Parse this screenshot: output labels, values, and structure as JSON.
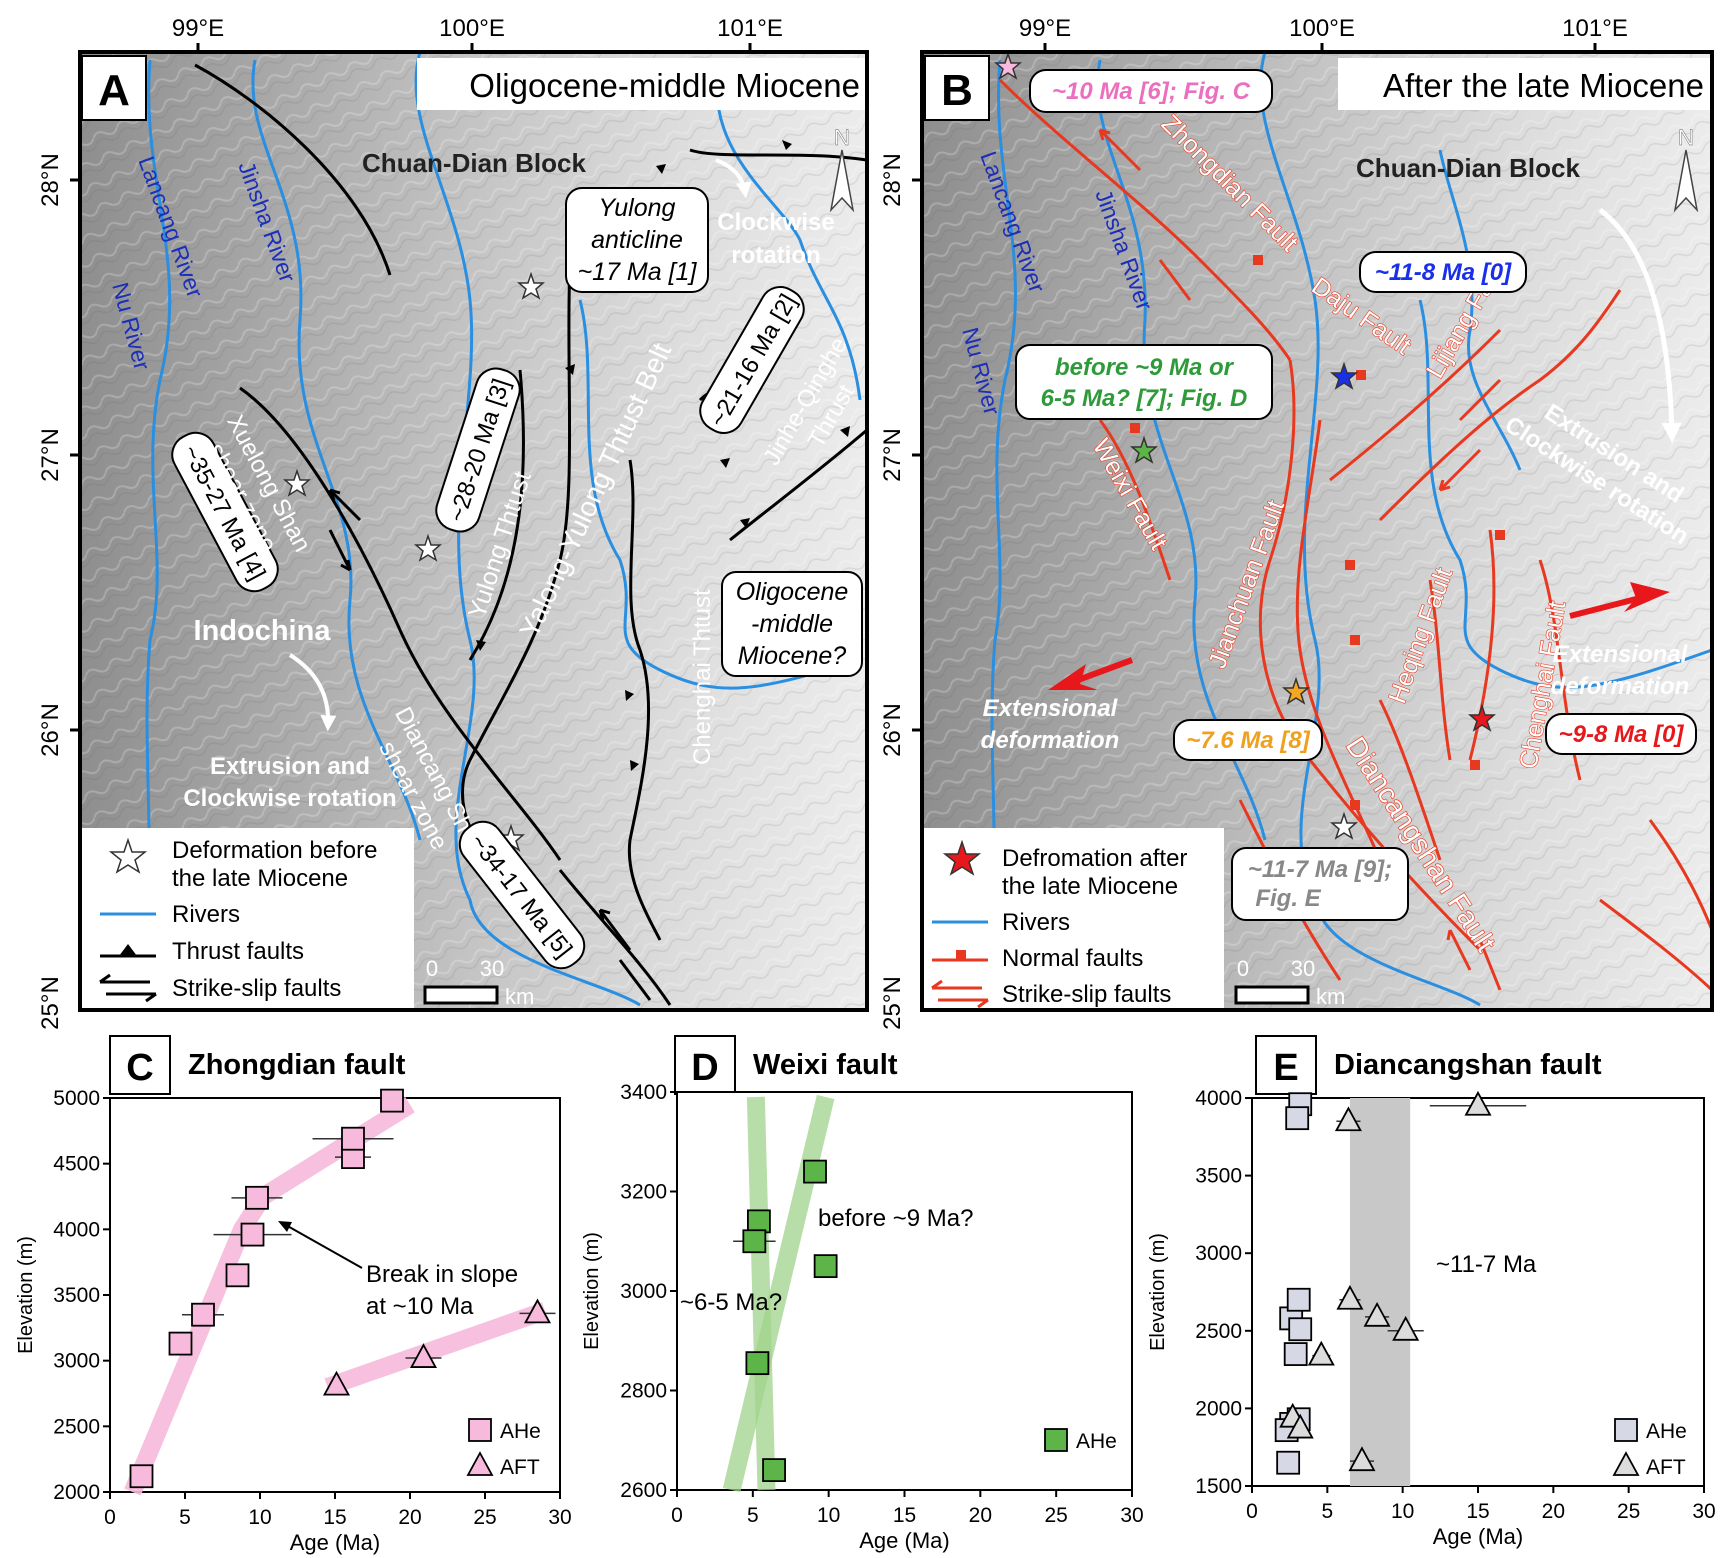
{
  "panel_a": {
    "letter": "A",
    "title": "Oligocene-middle Miocene",
    "lon_labels": [
      "99°E",
      "100°E",
      "101°E"
    ],
    "lat_labels": [
      "28°N",
      "27°N",
      "26°N",
      "25°N"
    ],
    "block_label": "Chuan-Dian Block",
    "rivers": [
      "Lancang River",
      "Jinsha River",
      "Nu River"
    ],
    "region_indochina": "Indochina",
    "extrusion_line1": "Extrusion and",
    "extrusion_line2": "Clockwise rotation",
    "clockwise_line1": "Clockwise",
    "clockwise_line2": "rotation",
    "yulong_box": [
      "Yulong",
      "anticline",
      "~17 Ma [1]"
    ],
    "age_2": "~21-16 Ma [2]",
    "age_3": "~28-20 Ma [3]",
    "age_4": "~35-27 Ma [4]",
    "age_5": "~34-17 Ma [5]",
    "xuelong_line1": "Xuelong Shan",
    "xuelong_line2": "shear zone",
    "diancang_line1": "Diancang Shan",
    "diancang_line2": "shear zone",
    "yulong_thrust": "Yulong Thtust",
    "yalong_belt": "Yalong-Yulong Thtust Belt",
    "jinhe_line1": "Jinhe-Qinghe",
    "jinhe_line2": "Thrust",
    "chenghai_thrust": "Chenghai Thtust",
    "oligo_box": [
      "Oligocene",
      "-middle",
      "Miocene?"
    ],
    "scale_0": "0",
    "scale_30": "30",
    "scale_unit": "km",
    "legend": {
      "star_line1": "Deformation before",
      "star_line2": "the late Miocene",
      "rivers": "Rivers",
      "thrust": "Thrust faults",
      "strike": "Strike-slip faults"
    }
  },
  "panel_b": {
    "letter": "B",
    "title": "After the late Miocene",
    "lon_labels": [
      "99°E",
      "100°E",
      "101°E"
    ],
    "lat_labels": [
      "28°N",
      "27°N",
      "26°N",
      "25°N"
    ],
    "block_label": "Chuan-Dian Block",
    "rivers": [
      "Lancang River",
      "Jinsha River",
      "Nu River"
    ],
    "pink_box": "~10 Ma [6]; Fig. C",
    "blue_box": "~11-8 Ma [0]",
    "green_line1": "before ~9 Ma or",
    "green_line2": "6-5 Ma? [7]; Fig. D",
    "orange_box": "~7.6 Ma [8]",
    "red_box": "~9-8 Ma [0]",
    "gray_line1": "~11-7 Ma [9];",
    "gray_line2": "Fig. E",
    "faults": [
      "Zhongdian Fault",
      "Daju Fault",
      "Lijiang Fault",
      "Weixi Fault",
      "Jianchuan Fault",
      "Heqing Fault",
      "Chenghai Fault",
      "Diancangshan Fault"
    ],
    "extrusion_line1": "Extrusion and",
    "extrusion_line2": "Clockwise rotation",
    "ext_left1": "Extensional",
    "ext_left2": "deformation",
    "ext_right1": "Extensional",
    "ext_right2": "deformation",
    "scale_0": "0",
    "scale_30": "30",
    "scale_unit": "km",
    "legend": {
      "star_line1": "Defromation after",
      "star_line2": "the late Miocene",
      "rivers": "Rivers",
      "normal": "Normal faults",
      "strike": "Strike-slip faults"
    }
  },
  "colors": {
    "river": "#2a8fe0",
    "fault_red": "#e8381f",
    "pink": "#f7b9dc",
    "green": "#5db54a",
    "ahe_gray": "#d6d8e6"
  },
  "chart_data": [
    {
      "type": "scatter",
      "panel": "C",
      "title": "Zhongdian fault",
      "xlabel": "Age (Ma)",
      "ylabel": "Elevation (m)",
      "xlim": [
        0,
        30
      ],
      "ylim": [
        2000,
        5000
      ],
      "xticks": [
        0,
        5,
        10,
        15,
        20,
        25,
        30
      ],
      "yticks": [
        2000,
        2500,
        3000,
        3500,
        4000,
        4500,
        5000
      ],
      "annotation": [
        "Break in slope",
        "at ~10 Ma"
      ],
      "series": [
        {
          "name": "AHe",
          "marker": "square",
          "points": [
            [
              2.1,
              2120,
              0
            ],
            [
              4.7,
              3130,
              0
            ],
            [
              6.2,
              3350,
              1.4
            ],
            [
              8.5,
              3650,
              0.7
            ],
            [
              9.5,
              3960,
              2.6
            ],
            [
              9.8,
              4240,
              1.7
            ],
            [
              16.2,
              4550,
              1.2
            ],
            [
              16.2,
              4690,
              2.7
            ],
            [
              18.8,
              4980,
              0
            ]
          ]
        },
        {
          "name": "AFT",
          "marker": "triangle",
          "points": [
            [
              15.1,
              2810,
              0
            ],
            [
              20.9,
              3020,
              1.2
            ],
            [
              28.5,
              3360,
              1.2
            ]
          ]
        }
      ],
      "trend_lines": [
        [
          [
            1.5,
            2000
          ],
          [
            8.8,
            4000
          ],
          [
            10.2,
            4250
          ],
          [
            20,
            4950
          ]
        ],
        [
          [
            14.5,
            2800
          ],
          [
            29,
            3380
          ]
        ]
      ]
    },
    {
      "type": "scatter",
      "panel": "D",
      "title": "Weixi fault",
      "xlabel": "Age (Ma)",
      "ylabel": "Elevation (m)",
      "xlim": [
        0,
        30
      ],
      "ylim": [
        2600,
        3400
      ],
      "xticks": [
        0,
        5,
        10,
        15,
        20,
        25,
        30
      ],
      "yticks": [
        2600,
        2800,
        3000,
        3200,
        3400
      ],
      "annotations": [
        "before ~9 Ma?",
        "~6-5 Ma?"
      ],
      "series": [
        {
          "name": "AHe",
          "marker": "square",
          "points": [
            [
              5.4,
              3140,
              0
            ],
            [
              5.1,
              3100,
              1.4
            ],
            [
              5.3,
              2855,
              0
            ],
            [
              6.4,
              2640,
              0
            ],
            [
              9.1,
              3240,
              0
            ],
            [
              9.8,
              3050,
              0
            ]
          ]
        }
      ],
      "trend_lines": [
        [
          [
            5.2,
            3390
          ],
          [
            5.9,
            2600
          ]
        ],
        [
          [
            9.8,
            3390
          ],
          [
            3.6,
            2600
          ]
        ]
      ]
    },
    {
      "type": "scatter",
      "panel": "E",
      "title": "Diancangshan fault",
      "xlabel": "Age (Ma)",
      "ylabel": "Elevation (m)",
      "xlim": [
        0,
        30
      ],
      "ylim": [
        1500,
        4000
      ],
      "xticks": [
        0,
        5,
        10,
        15,
        20,
        25,
        30
      ],
      "yticks": [
        1500,
        2000,
        2500,
        3000,
        3500,
        4000
      ],
      "annotation": "~11-7 Ma",
      "shaded_range": [
        6.5,
        10.5
      ],
      "series": [
        {
          "name": "AHe",
          "marker": "square",
          "points": [
            [
              3.2,
              3960,
              0
            ],
            [
              3.0,
              3870,
              0
            ],
            [
              2.6,
              2580,
              0
            ],
            [
              3.1,
              2700,
              0
            ],
            [
              3.2,
              2510,
              0
            ],
            [
              2.9,
              2350,
              0
            ],
            [
              2.6,
              1900,
              0
            ],
            [
              3.1,
              1930,
              0
            ],
            [
              2.3,
              1860,
              0
            ],
            [
              2.4,
              1650,
              0
            ]
          ]
        },
        {
          "name": "AFT",
          "marker": "triangle",
          "points": [
            [
              6.4,
              3850,
              0.8
            ],
            [
              15.0,
              3950,
              3.2
            ],
            [
              6.5,
              2700,
              0.7
            ],
            [
              8.3,
              2590,
              0.8
            ],
            [
              10.2,
              2500,
              1.2
            ],
            [
              4.6,
              2340,
              0.6
            ],
            [
              2.7,
              1940,
              0
            ],
            [
              3.2,
              1870,
              0
            ],
            [
              7.3,
              1660,
              0.8
            ]
          ]
        }
      ]
    }
  ],
  "legend_c": [
    "AHe",
    "AFT"
  ],
  "legend_d": [
    "AHe"
  ],
  "legend_e": [
    "AHe",
    "AFT"
  ]
}
